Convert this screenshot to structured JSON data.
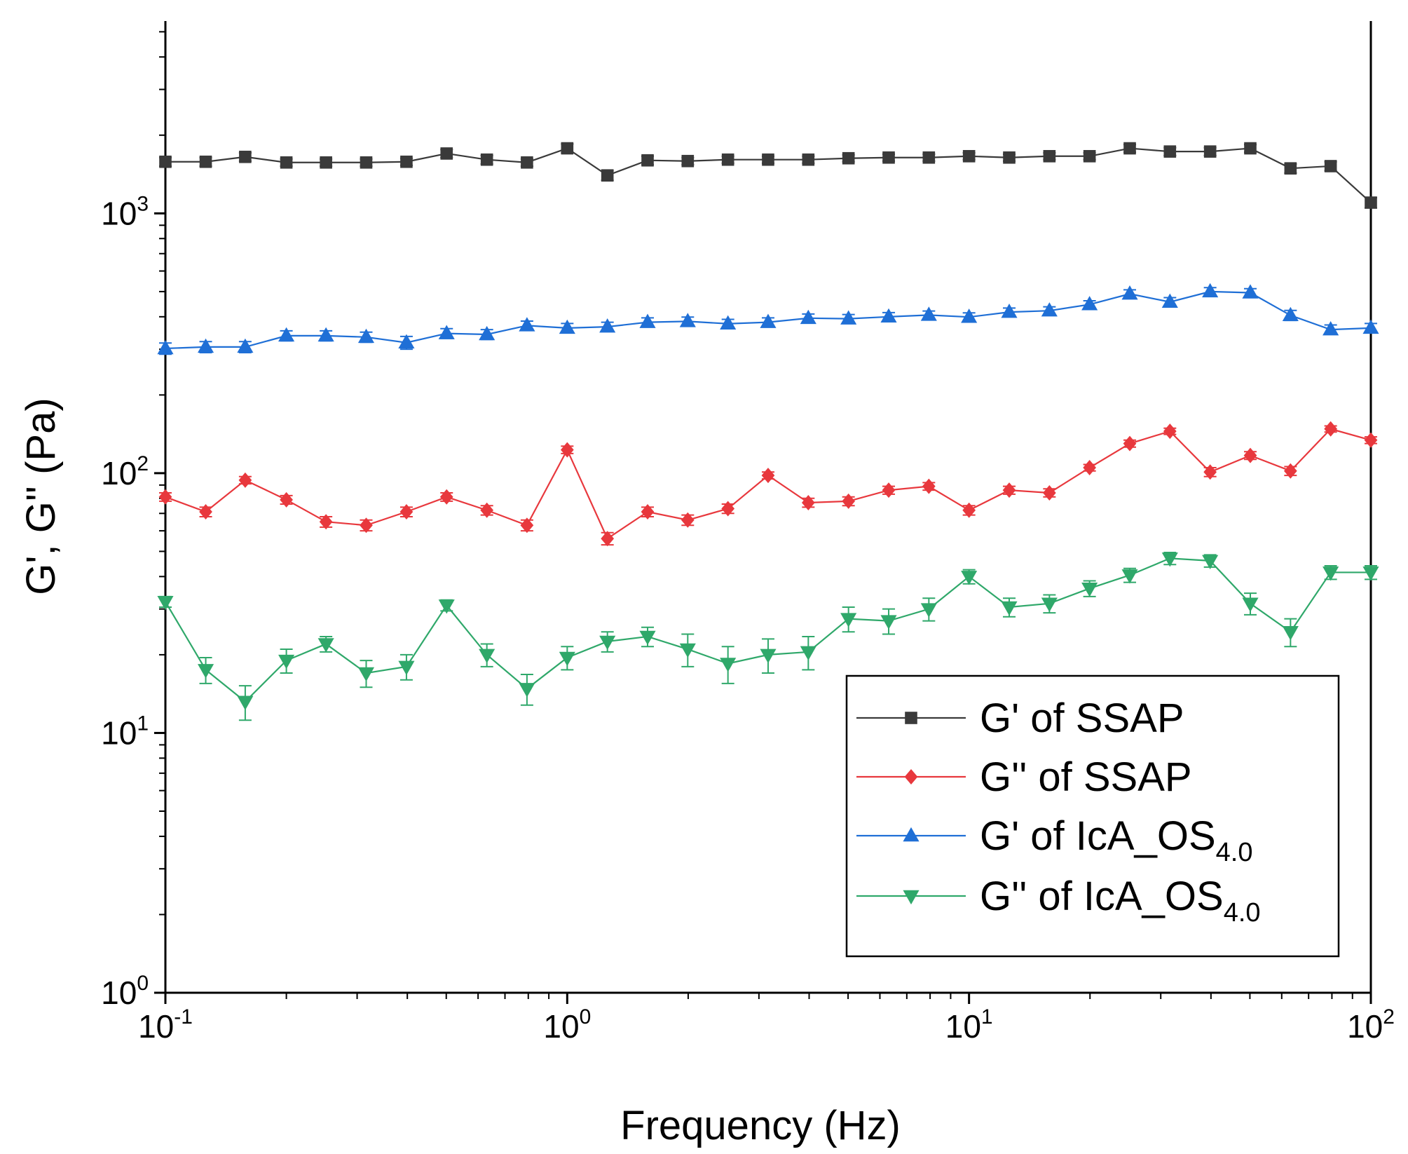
{
  "chart_data": {
    "type": "line",
    "title": "",
    "xlabel": "Frequency (Hz)",
    "ylabel": "G', G'' (Pa)",
    "xscale": "log",
    "yscale": "log",
    "xlim": [
      0.1,
      100
    ],
    "ylim": [
      1,
      5500
    ],
    "x_ticks": [
      {
        "base": "10",
        "exp": "-1",
        "value": 0.1
      },
      {
        "base": "10",
        "exp": "0",
        "value": 1
      },
      {
        "base": "10",
        "exp": "1",
        "value": 10
      },
      {
        "base": "10",
        "exp": "2",
        "value": 100
      }
    ],
    "y_ticks": [
      {
        "base": "10",
        "exp": "0",
        "value": 1
      },
      {
        "base": "10",
        "exp": "1",
        "value": 10
      },
      {
        "base": "10",
        "exp": "2",
        "value": 100
      },
      {
        "base": "10",
        "exp": "3",
        "value": 1000
      }
    ],
    "legend_position": "lower-right",
    "x": [
      0.1,
      0.126,
      0.158,
      0.2,
      0.251,
      0.316,
      0.398,
      0.501,
      0.631,
      0.794,
      1.0,
      1.259,
      1.585,
      1.995,
      2.512,
      3.162,
      3.981,
      5.012,
      6.31,
      7.943,
      10.0,
      12.59,
      15.85,
      19.95,
      25.12,
      31.62,
      39.81,
      50.12,
      63.1,
      79.43,
      100.0
    ],
    "series": [
      {
        "name_main": "G' of SSAP",
        "name_sub": "",
        "color": "#3a3a3a",
        "marker": "square",
        "values": [
          1580,
          1580,
          1650,
          1570,
          1570,
          1570,
          1580,
          1700,
          1610,
          1570,
          1780,
          1400,
          1600,
          1590,
          1610,
          1610,
          1610,
          1630,
          1640,
          1640,
          1660,
          1640,
          1660,
          1660,
          1780,
          1730,
          1730,
          1780,
          1490,
          1520,
          1100
        ],
        "errors": [
          60,
          60,
          60,
          50,
          50,
          50,
          50,
          60,
          60,
          50,
          70,
          60,
          60,
          50,
          50,
          50,
          50,
          50,
          50,
          50,
          50,
          50,
          50,
          50,
          60,
          60,
          60,
          60,
          60,
          60,
          50
        ]
      },
      {
        "name_main": "G'' of SSAP",
        "name_sub": "",
        "color": "#e8383d",
        "marker": "diamond",
        "values": [
          81,
          71,
          94,
          79,
          65,
          63,
          71,
          81,
          72,
          63,
          123,
          56,
          71,
          66,
          73,
          98,
          77,
          78,
          86,
          89,
          72,
          86,
          84,
          105,
          130,
          145,
          101,
          117,
          102,
          148,
          134
        ],
        "errors": [
          3,
          3,
          3,
          3,
          3,
          3,
          3,
          3,
          3,
          3,
          4,
          3,
          3,
          3,
          3,
          3,
          3,
          3,
          3,
          3,
          3,
          3,
          3,
          3,
          4,
          4,
          4,
          4,
          4,
          4,
          4
        ]
      },
      {
        "name_main": "G' of IcA_OS",
        "name_sub": "4.0",
        "color": "#1f6fd6",
        "marker": "triangle-up",
        "values": [
          302,
          306,
          306,
          338,
          338,
          334,
          318,
          345,
          342,
          370,
          362,
          366,
          381,
          384,
          376,
          381,
          395,
          393,
          400,
          406,
          399,
          417,
          422,
          446,
          490,
          456,
          500,
          495,
          405,
          357,
          362
        ],
        "errors": [
          15,
          15,
          15,
          15,
          15,
          15,
          18,
          15,
          15,
          15,
          15,
          15,
          15,
          15,
          15,
          15,
          15,
          15,
          15,
          15,
          15,
          15,
          15,
          15,
          18,
          18,
          18,
          18,
          18,
          15,
          15
        ]
      },
      {
        "name_main": "G'' of IcA_OS",
        "name_sub": "4.0",
        "color": "#2fa86a",
        "marker": "triangle-down",
        "values": [
          32,
          17.5,
          13.2,
          19,
          22,
          17,
          18,
          31,
          20,
          14.8,
          19.5,
          22.5,
          23.5,
          21,
          18.5,
          20,
          20.5,
          27.5,
          27,
          30,
          40,
          30.5,
          31.5,
          36,
          40.5,
          47,
          46,
          31.5,
          24.5,
          41.5,
          41.5
        ],
        "errors": [
          1.5,
          2,
          2,
          2,
          1.5,
          2,
          2,
          1.5,
          2,
          2,
          2,
          2,
          2,
          3,
          3,
          3,
          3,
          3,
          3,
          3,
          2.5,
          2.5,
          2.5,
          2.5,
          2.5,
          2.5,
          2.5,
          3,
          3,
          2.5,
          2.5
        ]
      }
    ]
  }
}
